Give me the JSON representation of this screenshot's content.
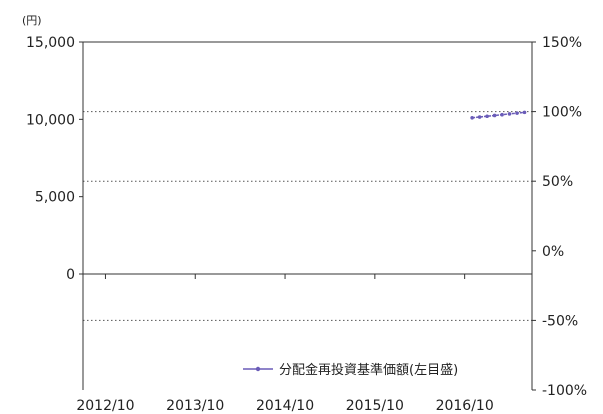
{
  "chart_data": {
    "type": "line",
    "left_unit_label": "(円)",
    "left_axis": {
      "ticks": [
        15000,
        10000,
        5000,
        0
      ],
      "tick_labels": [
        "15,000",
        "10,000",
        "5,000",
        "0"
      ],
      "range": [
        -7500,
        15000
      ]
    },
    "right_axis": {
      "ticks": [
        150,
        100,
        50,
        0,
        -50,
        -100
      ],
      "tick_labels": [
        "150%",
        "100%",
        "50%",
        "0%",
        "-50%",
        "-100%"
      ],
      "range": [
        -100,
        150
      ]
    },
    "x_axis": {
      "tick_labels": [
        "2012/10",
        "2013/10",
        "2014/10",
        "2015/10",
        "2016/10"
      ],
      "range": [
        "2012/07",
        "2017/07"
      ]
    },
    "grid": {
      "dotted_at_right_percent": [
        100,
        50,
        -50
      ],
      "solid_at_left_value": 0
    },
    "series": [
      {
        "name": "分配金再投資基準価額(左目盛)",
        "color": "#6a5cb8",
        "axis": "left",
        "x": [
          "2016/11",
          "2016/12",
          "2017/01",
          "2017/02",
          "2017/03",
          "2017/04",
          "2017/05",
          "2017/06"
        ],
        "values": [
          10100,
          10150,
          10200,
          10250,
          10300,
          10350,
          10400,
          10450
        ]
      }
    ],
    "legend_placement": "bottom-right"
  }
}
